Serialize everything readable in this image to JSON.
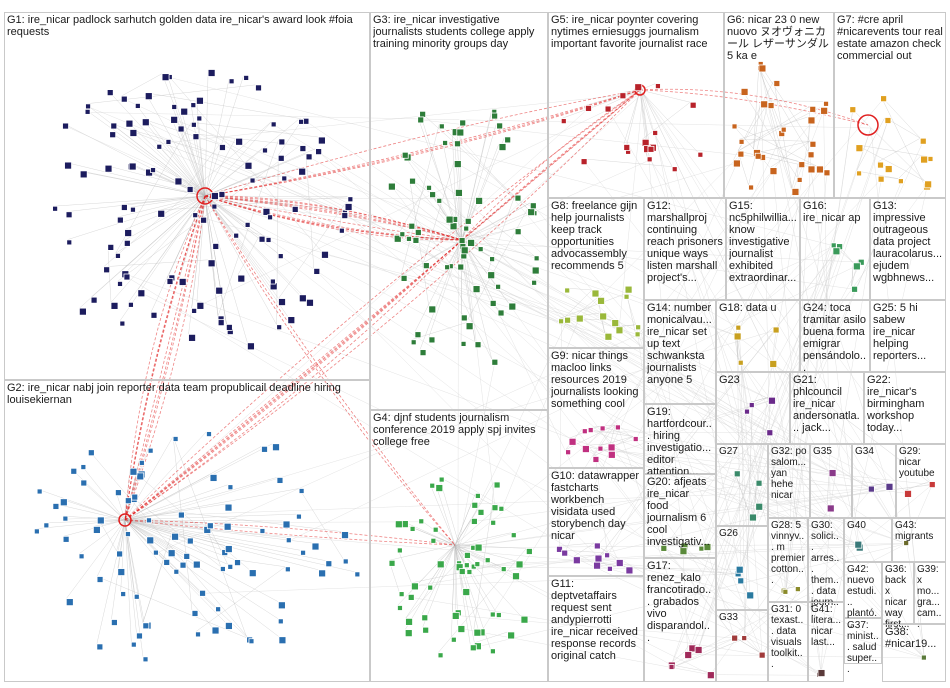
{
  "colors": {
    "edge_internal": "#b8b8b8",
    "edge_bridge": "#d0d0d0",
    "edge_highlight": "#e02020",
    "box_border": "#c9c9c9"
  },
  "groups": [
    {
      "id": "G1",
      "label": "G1: ire_nicar padlock sarhutch golden data ire_nicar's award look #foia requests",
      "color": "#1c1c5e"
    },
    {
      "id": "G2",
      "label": "G2: ire_nicar nabj join reporter data team propublicail deadline hiring louisekiernan",
      "color": "#2a6fb0"
    },
    {
      "id": "G3",
      "label": "G3: ire_nicar investigative journalists students college apply training minority groups day",
      "color": "#2e7d3a"
    },
    {
      "id": "G4",
      "label": "G4: djnf students journalism conference 2019 apply spj invites college free",
      "color": "#3aa84a"
    },
    {
      "id": "G5",
      "label": "G5: ire_nicar poynter covering nytimes erniesuggs journalism important favorite journalist race",
      "color": "#b8222a"
    },
    {
      "id": "G6",
      "label": "G6: nicar 23 0 new nuovo ヌオヴォニカール レザーサンダル 5 ka e",
      "color": "#c8641e"
    },
    {
      "id": "G7",
      "label": "G7: #cre april #nicarevents tour real estate amazon check commercial out",
      "color": "#e0a020"
    },
    {
      "id": "G8",
      "label": "G8: freelance gijn help journalists keep track opportunities advocassembly recommends 5",
      "color": "#9ab83a"
    },
    {
      "id": "G9",
      "label": "G9: nicar things macloo links resources 2019 journalists looking something cool",
      "color": "#c03080"
    },
    {
      "id": "G10",
      "label": "G10: datawrapper fastcharts workbench visidata used storybench day nicar",
      "color": "#7a3aa0"
    },
    {
      "id": "G11",
      "label": "G11: deptvetaffairs request sent andypierrotti ire_nicar received response records original catch",
      "color": "#1e8c8c"
    },
    {
      "id": "G12",
      "label": "G12: marshallproj continuing reach prisoners unique ways listen marshall project's...",
      "color": "#4a4a9a"
    },
    {
      "id": "G13",
      "label": "G13: impressive outrageous data project lauracolarus... ejudem wgbhnews...",
      "color": "#3a7a3a"
    },
    {
      "id": "G14",
      "label": "G14: number monicalvau... ire_nicar set up text schwanksta journalists anyone 5",
      "color": "#6a8a2a"
    },
    {
      "id": "G15",
      "label": "G15: nc5philwillia... know investigative journalist exhibited extraordinar...",
      "color": "#2a5a8a"
    },
    {
      "id": "G16",
      "label": "G16: ire_nicar ap",
      "color": "#3a9a5a"
    },
    {
      "id": "G17",
      "label": "G17: renez_kalo francotirado... grabados vivo disparandol...",
      "color": "#a02a5a"
    },
    {
      "id": "G18",
      "label": "G18: data u",
      "color": "#c8a020"
    },
    {
      "id": "G19",
      "label": "G19: hartfordcour... hiring investigatio... editor attention...",
      "color": "#8a3a3a"
    },
    {
      "id": "G20",
      "label": "G20: afjeats ire_nicar food journalism 6 cool investigativ...",
      "color": "#5a8a3a"
    },
    {
      "id": "G21",
      "label": "G21: phlcouncil ire_nicar andersonatla... jack...",
      "color": "#3a3a8a"
    },
    {
      "id": "G22",
      "label": "G22: ire_nicar's birmingham workshop today...",
      "color": "#8a5a2a"
    },
    {
      "id": "G23",
      "label": "G23",
      "color": "#6a2a8a"
    },
    {
      "id": "G24",
      "label": "G24: toca tramitar asilo buena forma emigrar pensándolo...",
      "color": "#c87a2a"
    },
    {
      "id": "G25",
      "label": "G25: 5 hi sabew ire_nicar helping reporters...",
      "color": "#b83a3a"
    },
    {
      "id": "G26",
      "label": "G26",
      "color": "#2a7aa0"
    },
    {
      "id": "G27",
      "label": "G27",
      "color": "#3a8a6a"
    },
    {
      "id": "G28",
      "label": "G28: 5 vinnyv... m premier cotton...",
      "color": "#8a8a2a"
    },
    {
      "id": "G29",
      "label": "G29: nicar youtube",
      "color": "#c83a3a"
    },
    {
      "id": "G30",
      "label": "G30: solici... arres... them... data journ...",
      "color": "#5a5a5a"
    },
    {
      "id": "G31",
      "label": "G31: 0 texast... data visuals toolkit...",
      "color": "#2a8a8a"
    },
    {
      "id": "G32",
      "label": "G32: po salom... yan hehe nicar",
      "color": "#8a2a8a"
    },
    {
      "id": "G33",
      "label": "G33",
      "color": "#a03a3a"
    },
    {
      "id": "G34",
      "label": "G34",
      "color": "#5a3a8a"
    },
    {
      "id": "G35",
      "label": "G35",
      "color": "#8a3a8a"
    },
    {
      "id": "G36",
      "label": "G36: back x nicar way first...",
      "color": "#3a5a8a"
    },
    {
      "id": "G37",
      "label": "G37: minist... salud super...",
      "color": "#7a5a3a"
    },
    {
      "id": "G38",
      "label": "G38: #nicar19...",
      "color": "#5a7a3a"
    },
    {
      "id": "G39",
      "label": "G39: x mo... gra... cam...",
      "color": "#7a3a5a"
    },
    {
      "id": "G40",
      "label": "G40",
      "color": "#3a7a7a"
    },
    {
      "id": "G41",
      "label": "G41: litera... nicar last...",
      "color": "#5a3a3a"
    },
    {
      "id": "G42",
      "label": "G42: nuevo estudi... plantó...",
      "color": "#3a5a3a"
    },
    {
      "id": "G43",
      "label": "G43: migrants",
      "color": "#6a6a2a"
    }
  ]
}
